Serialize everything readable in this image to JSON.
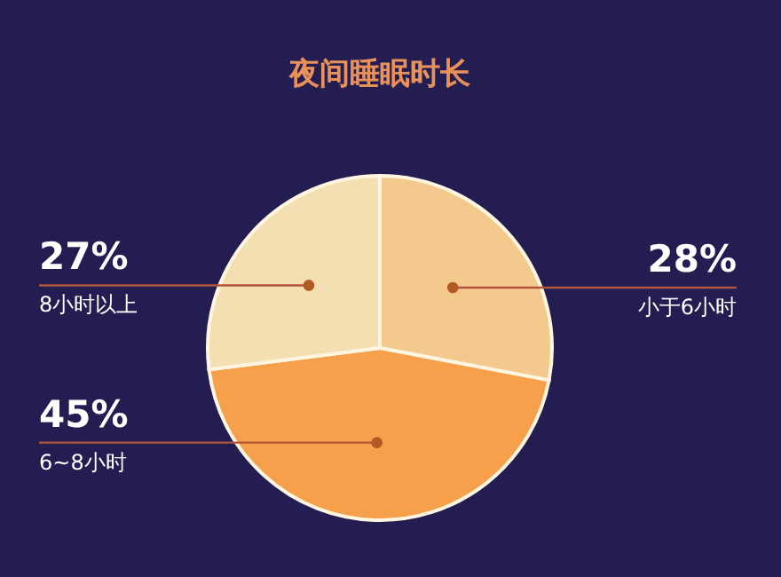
{
  "chart_data": {
    "type": "pie",
    "title": "夜间睡眠时长",
    "categories": [
      "小于6小时",
      "6~8小时",
      "8小时以上"
    ],
    "values": [
      28,
      45,
      27
    ],
    "value_labels": [
      "28%",
      "45%",
      "27%"
    ],
    "colors": [
      "#f3c98d",
      "#f6a04b",
      "#f4dfb3"
    ]
  }
}
